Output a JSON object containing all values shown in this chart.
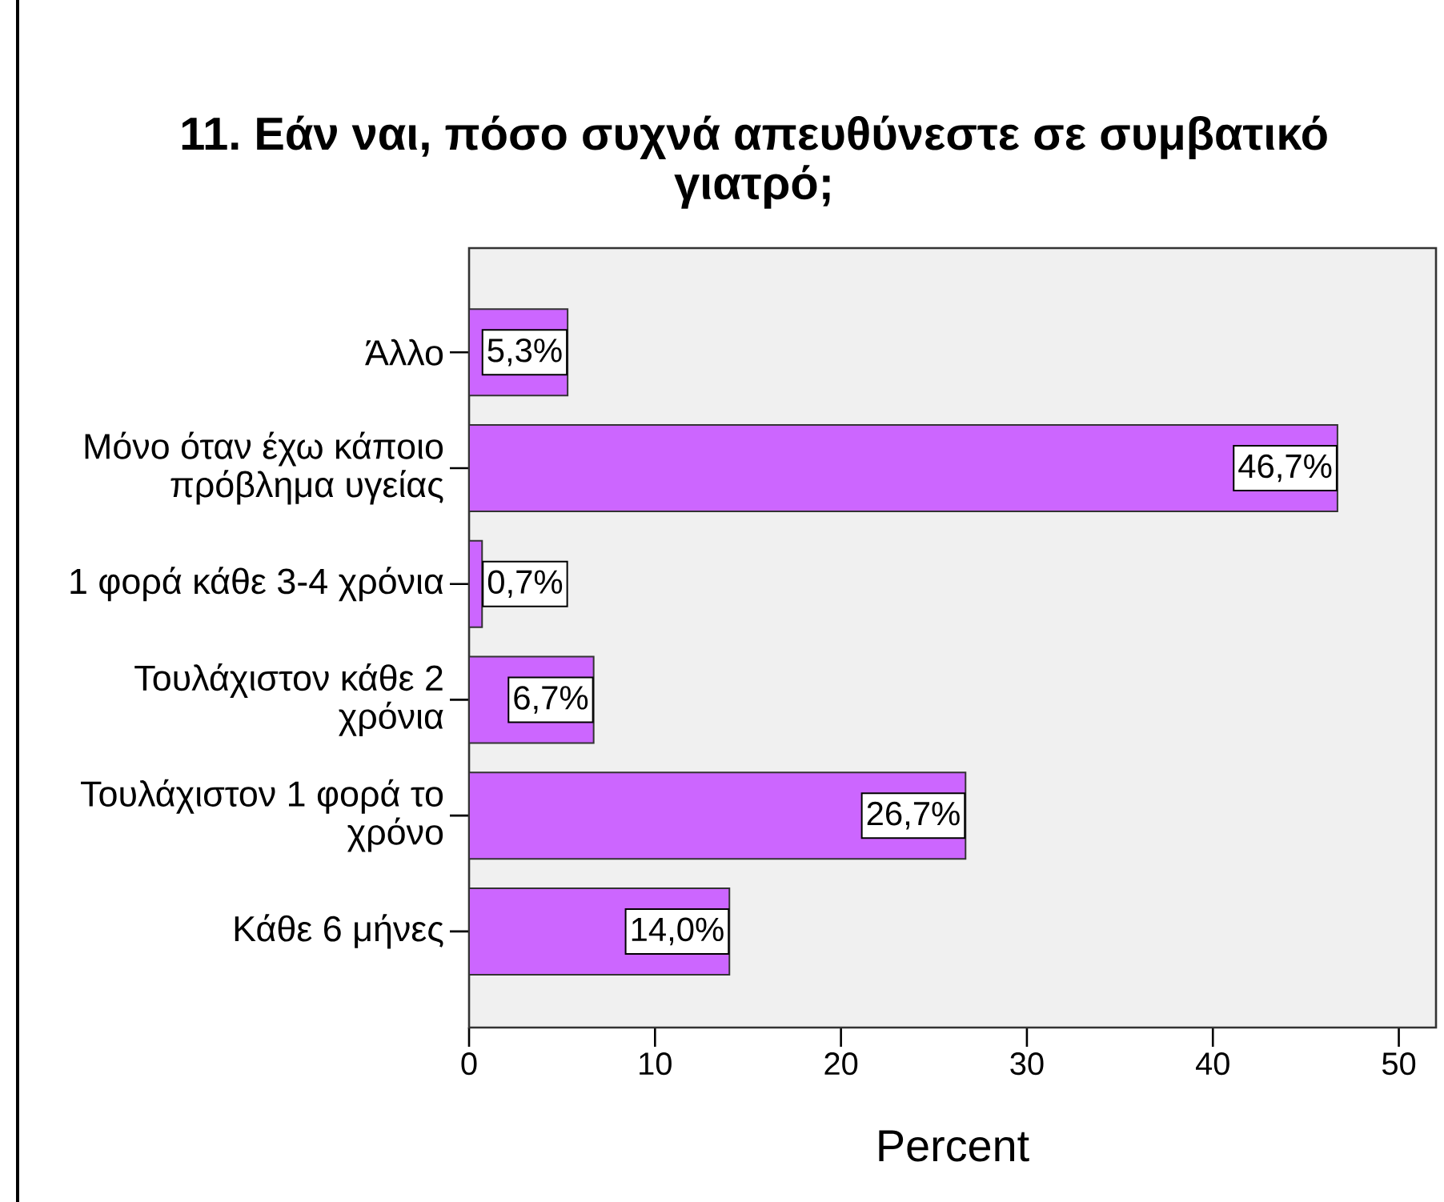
{
  "chart_data": {
    "type": "bar",
    "orientation": "horizontal",
    "title": "11. Εάν ναι, πόσο συχνά απευθύνεστε σε συμβατικό γιατρό;",
    "xlabel": "Percent",
    "categories": [
      "Άλλο",
      "Μόνο όταν έχω κάποιο πρόβλημα υγείας",
      "1 φορά κάθε 3-4 χρόνια",
      "Τουλάχιστον κάθε 2 χρόνια",
      "Τουλάχιστον 1 φορά το χρόνο",
      "Κάθε 6 μήνες"
    ],
    "values": [
      5.3,
      46.7,
      0.7,
      6.7,
      26.7,
      14.0
    ],
    "value_labels": [
      "5,3%",
      "46,7%",
      "0,7%",
      "6,7%",
      "26,7%",
      "14,0%"
    ],
    "color": "#cc66ff",
    "xlim": [
      0,
      52
    ],
    "xticks": [
      0,
      10,
      20,
      30,
      40,
      50
    ]
  }
}
